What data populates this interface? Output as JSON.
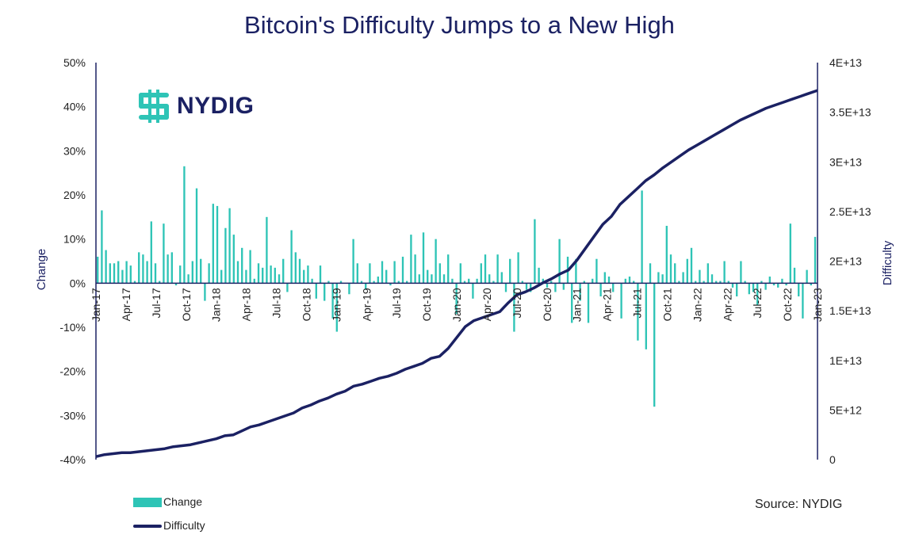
{
  "title": "Bitcoin's Difficulty Jumps to a New High",
  "logo_text": "NYDIG",
  "source": "Source: NYDIG",
  "colors": {
    "bars": "#2ec4b6",
    "line": "#1b2163",
    "axis": "#1b2163"
  },
  "chart_data": {
    "type": "bar+line",
    "x_tick_labels": [
      "Jan-17",
      "Apr-17",
      "Jul-17",
      "Oct-17",
      "Jan-18",
      "Apr-18",
      "Jul-18",
      "Oct-18",
      "Jan-19",
      "Apr-19",
      "Jul-19",
      "Oct-19",
      "Jan-20",
      "Apr-20",
      "Jul-20",
      "Oct-20",
      "Jan-21",
      "Apr-21",
      "Jul-21",
      "Oct-21",
      "Jan-22",
      "Apr-22",
      "Jul-22",
      "Oct-22",
      "Jan-23"
    ],
    "y_left": {
      "label": "Change",
      "range": [
        -40,
        50
      ],
      "ticks": [
        "-40%",
        "-30%",
        "-20%",
        "-10%",
        "0%",
        "10%",
        "20%",
        "30%",
        "40%",
        "50%"
      ]
    },
    "y_right": {
      "label": "Difficulty",
      "range": [
        0,
        40000000000000
      ],
      "ticks": [
        "0",
        "5E+12",
        "1E+13",
        "1.5E+13",
        "2E+13",
        "2.5E+13",
        "3E+13",
        "3.5E+13",
        "4E+13"
      ]
    },
    "legend": [
      "Change",
      "Difficulty"
    ],
    "legend_position": "bottom-left",
    "series": [
      {
        "name": "Change",
        "type": "bar",
        "x_start": "Jan-17",
        "points_per_month": 2.17,
        "values": [
          6,
          16.5,
          7.5,
          4.5,
          4.5,
          5,
          3,
          5,
          4,
          0.5,
          7,
          6.5,
          5,
          14,
          4.5,
          0.5,
          13.5,
          6.5,
          7,
          -0.5,
          4,
          26.5,
          2,
          5,
          21.5,
          5.5,
          -4,
          4.5,
          18,
          17.5,
          3,
          12.5,
          17,
          11,
          5,
          8,
          3,
          7.5,
          1,
          4.5,
          3.5,
          15,
          4,
          3.5,
          2,
          5.5,
          -2,
          12,
          7,
          5.5,
          3,
          4,
          1,
          -3.5,
          4,
          -4,
          0.5,
          -8,
          -11,
          0.5,
          0,
          -2.5,
          10,
          4.5,
          0.5,
          -1.5,
          4.5,
          0.5,
          1.5,
          5,
          3,
          -0.5,
          5,
          0.5,
          6,
          0.5,
          11,
          6.5,
          2,
          11.5,
          3,
          2,
          10,
          4.5,
          2,
          6.5,
          1,
          -7,
          4.5,
          0.5,
          1,
          -3.5,
          1,
          4.5,
          6.5,
          2,
          0.5,
          6.5,
          2.5,
          -2,
          5.5,
          -11,
          7,
          0.5,
          -1.5,
          -2,
          14.5,
          3.5,
          1,
          -1,
          0.5,
          -2,
          10,
          -1.5,
          6,
          -9,
          5.5,
          -4,
          0.5,
          -9,
          1,
          5.5,
          -3,
          2.5,
          1.5,
          -2,
          0,
          -8,
          1,
          1.5,
          0.5,
          -13,
          21,
          -15,
          4.5,
          -28,
          2.5,
          2,
          13,
          6.5,
          4.5,
          0.5,
          2.5,
          5.5,
          8,
          0.5,
          3,
          0.5,
          4.5,
          2,
          0.5,
          0.5,
          5,
          0.5,
          -1,
          -3,
          5,
          0.5,
          -2.5,
          -2,
          -5,
          0.5,
          -1.5,
          1.5,
          -0.5,
          -1,
          1,
          -0.5,
          13.5,
          3.5,
          -3,
          -8,
          3,
          -0.5,
          10.5
        ]
      },
      {
        "name": "Difficulty",
        "type": "line",
        "points": [
          [
            0,
            0.03
          ],
          [
            1,
            0.05
          ],
          [
            2,
            0.06
          ],
          [
            3,
            0.07
          ],
          [
            4,
            0.07
          ],
          [
            5,
            0.08
          ],
          [
            6,
            0.09
          ],
          [
            7,
            0.1
          ],
          [
            8,
            0.11
          ],
          [
            9,
            0.13
          ],
          [
            10,
            0.14
          ],
          [
            11,
            0.15
          ],
          [
            12,
            0.17
          ],
          [
            13,
            0.19
          ],
          [
            14,
            0.21
          ],
          [
            15,
            0.24
          ],
          [
            16,
            0.25
          ],
          [
            17,
            0.29
          ],
          [
            18,
            0.33
          ],
          [
            19,
            0.35
          ],
          [
            20,
            0.38
          ],
          [
            21,
            0.41
          ],
          [
            22,
            0.44
          ],
          [
            23,
            0.47
          ],
          [
            24,
            0.52
          ],
          [
            25,
            0.55
          ],
          [
            26,
            0.59
          ],
          [
            27,
            0.62
          ],
          [
            28,
            0.66
          ],
          [
            29,
            0.69
          ],
          [
            30,
            0.74
          ],
          [
            31,
            0.76
          ],
          [
            32,
            0.79
          ],
          [
            33,
            0.82
          ],
          [
            34,
            0.84
          ],
          [
            35,
            0.87
          ],
          [
            36,
            0.91
          ],
          [
            37,
            0.94
          ],
          [
            38,
            0.97
          ],
          [
            39,
            1.02
          ],
          [
            40,
            1.04
          ],
          [
            41,
            1.12
          ],
          [
            42,
            1.23
          ],
          [
            43,
            1.34
          ],
          [
            44,
            1.4
          ],
          [
            45,
            1.43
          ],
          [
            46,
            1.46
          ],
          [
            47,
            1.49
          ],
          [
            48,
            1.58
          ],
          [
            49,
            1.66
          ],
          [
            50,
            1.69
          ],
          [
            51,
            1.73
          ],
          [
            52,
            1.78
          ],
          [
            53,
            1.82
          ],
          [
            54,
            1.87
          ],
          [
            55,
            1.91
          ],
          [
            56,
            2.01
          ],
          [
            57,
            2.13
          ],
          [
            58,
            2.25
          ],
          [
            59,
            2.37
          ],
          [
            60,
            2.45
          ],
          [
            61,
            2.57
          ],
          [
            62,
            2.65
          ],
          [
            63,
            2.73
          ],
          [
            64,
            2.81
          ],
          [
            65,
            2.87
          ],
          [
            66,
            2.94
          ],
          [
            67,
            3.0
          ],
          [
            68,
            3.06
          ],
          [
            69,
            3.12
          ],
          [
            70,
            3.17
          ],
          [
            71,
            3.22
          ],
          [
            72,
            3.27
          ],
          [
            73,
            3.32
          ],
          [
            74,
            3.37
          ],
          [
            75,
            3.42
          ],
          [
            76,
            3.46
          ],
          [
            77,
            3.5
          ],
          [
            78,
            3.54
          ],
          [
            79,
            3.57
          ],
          [
            80,
            3.6
          ],
          [
            81,
            3.63
          ],
          [
            82,
            3.66
          ],
          [
            83,
            3.69
          ],
          [
            84,
            3.72
          ]
        ]
      }
    ]
  }
}
